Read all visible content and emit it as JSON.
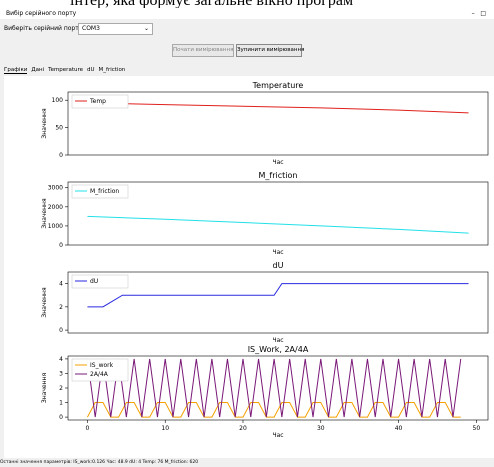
{
  "caption": "інтер, яка формує загальне вікно програм",
  "window_title": "Вибір серійного порту",
  "port_label": "Виберіть серійний порт:",
  "port_value": "COM3",
  "buttons": [
    "Почати вимірювання",
    "Зупинити вимірювання"
  ],
  "tabs": [
    "Графіки",
    "Дані",
    "Temperature",
    "dU",
    "M_friction"
  ],
  "status": "Останні значення параметрів: IS_work:0.126 Час: 48.9 dU: 4 Temp: 76 M_friction: 620",
  "chart_data": [
    {
      "type": "line",
      "title": "Temperature",
      "xlabel": "Час",
      "ylabel": "Значення",
      "x": [
        0,
        10,
        20,
        30,
        40,
        49
      ],
      "xlim": [
        -2.5,
        51.5
      ],
      "ylim": [
        0,
        115
      ],
      "yticks": [
        0,
        50,
        100
      ],
      "legend": "upper left",
      "series": [
        {
          "name": "Temp",
          "color": "#e0201c",
          "values": [
            95,
            92,
            89,
            86,
            82,
            77
          ]
        }
      ]
    },
    {
      "type": "line",
      "title": "M_friction",
      "xlabel": "Час",
      "ylabel": "Значення",
      "x": [
        0,
        10,
        20,
        30,
        40,
        49
      ],
      "xlim": [
        -2.5,
        51.5
      ],
      "ylim": [
        0,
        3300
      ],
      "yticks": [
        0,
        1000,
        2000,
        3000
      ],
      "legend": "upper left",
      "series": [
        {
          "name": "M_friction",
          "color": "#22e0e8",
          "values": [
            1500,
            1350,
            1180,
            1000,
            820,
            620
          ]
        }
      ]
    },
    {
      "type": "line",
      "title": "dU",
      "xlabel": "Час",
      "ylabel": "Значення",
      "x": [
        0,
        2,
        4.5,
        24,
        25,
        49
      ],
      "xlim": [
        -2.5,
        51.5
      ],
      "ylim": [
        -0.25,
        5
      ],
      "yticks": [
        0,
        2,
        4
      ],
      "legend": "upper left",
      "series": [
        {
          "name": "dU",
          "color": "#2a2ae0",
          "values": [
            2,
            2,
            3,
            3,
            4,
            4
          ]
        }
      ]
    },
    {
      "type": "line",
      "title": "IS_Work, 2A/4A",
      "xlabel": "Час",
      "ylabel": "Значення",
      "x": [
        0,
        1,
        2,
        3,
        4,
        5,
        6,
        7,
        8,
        9,
        10,
        11,
        12,
        13,
        14,
        15,
        16,
        17,
        18,
        19,
        20,
        21,
        22,
        23,
        24,
        25,
        26,
        27,
        28,
        29,
        30,
        31,
        32,
        33,
        34,
        35,
        36,
        37,
        38,
        39,
        40,
        41,
        42,
        43,
        44,
        45,
        46,
        47,
        48
      ],
      "xlim": [
        -2.5,
        51.5
      ],
      "xticks": [
        0,
        10,
        20,
        30,
        40,
        50
      ],
      "ylim": [
        -0.2,
        4.2
      ],
      "yticks": [
        0,
        1,
        2,
        3,
        4
      ],
      "legend": "upper left",
      "series": [
        {
          "name": "IS_work",
          "color": "#f5a000",
          "values": [
            0,
            1,
            1,
            0,
            0,
            1,
            1,
            0,
            0,
            1,
            1,
            0,
            0,
            1,
            1,
            0,
            0,
            1,
            1,
            0,
            0,
            1,
            1,
            0,
            0,
            1,
            1,
            0,
            0,
            1,
            1,
            0,
            0,
            1,
            1,
            0,
            0,
            1,
            1,
            0,
            0,
            1,
            1,
            0,
            0,
            1,
            1,
            0,
            0
          ]
        },
        {
          "name": "2A/4A",
          "color": "#7a1878",
          "values": [
            4,
            0,
            4,
            0,
            4,
            0,
            4,
            0,
            4,
            0,
            4,
            0,
            4,
            0,
            4,
            0,
            4,
            0,
            4,
            0,
            4,
            0,
            4,
            0,
            4,
            0,
            4,
            0,
            4,
            0,
            4,
            0,
            4,
            0,
            4,
            0,
            4,
            0,
            4,
            0,
            4,
            0,
            4,
            0,
            4,
            0,
            4,
            0,
            4
          ]
        }
      ]
    }
  ]
}
